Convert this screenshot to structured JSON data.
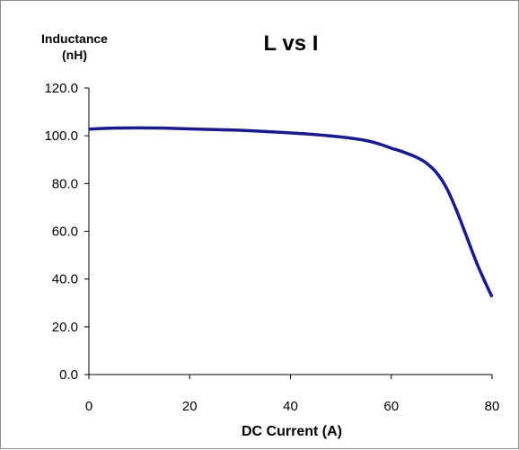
{
  "chart_data": {
    "type": "line",
    "title": "L vs I",
    "ylabel": [
      "Inductance",
      "(nH)"
    ],
    "xlabel": "DC Current (A)",
    "xlim": [
      0,
      80
    ],
    "ylim": [
      0,
      120
    ],
    "xticks": [
      0,
      20,
      40,
      60,
      80
    ],
    "yticks": [
      0,
      20,
      40,
      60,
      80,
      100,
      120
    ],
    "xtick_labels": [
      "0",
      "20",
      "40",
      "60",
      "80"
    ],
    "ytick_labels": [
      "0.0",
      "20.0",
      "40.0",
      "60.0",
      "80.0",
      "100.0",
      "120.0"
    ],
    "grid": false,
    "legend": "none",
    "series": [
      {
        "color": "#1a1a8c",
        "x": [
          0,
          5,
          10,
          15,
          20,
          25,
          30,
          35,
          40,
          45,
          50,
          55,
          58,
          60,
          62,
          65,
          67,
          69,
          71,
          73,
          75,
          77,
          79,
          80
        ],
        "y": [
          102.8,
          103.2,
          103.3,
          103.2,
          102.9,
          102.6,
          102.3,
          101.8,
          101.2,
          100.5,
          99.5,
          98.0,
          96.3,
          94.8,
          93.5,
          91.0,
          88.5,
          84.5,
          78.0,
          68.5,
          57.5,
          46.5,
          37.0,
          32.5
        ]
      }
    ]
  }
}
